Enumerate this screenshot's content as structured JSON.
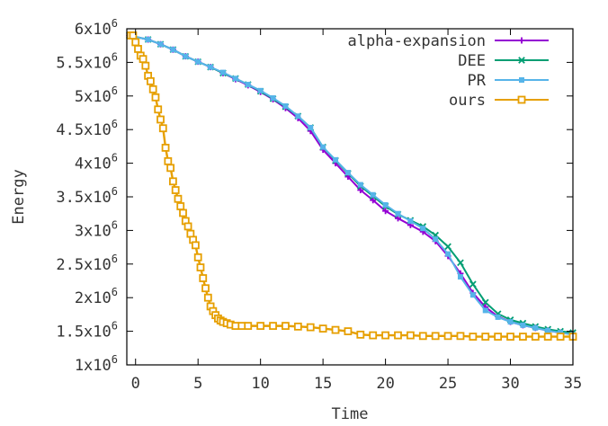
{
  "chart_data": {
    "type": "line",
    "title": "",
    "xlabel": "Time",
    "ylabel": "Energy",
    "xlim": [
      -0.7,
      35
    ],
    "ylim": [
      1000000,
      6000000
    ],
    "x_ticks": [
      0,
      5,
      10,
      15,
      20,
      25,
      30,
      35
    ],
    "x_tick_labels": [
      "0",
      "5",
      "10",
      "15",
      "20",
      "25",
      "30",
      "35"
    ],
    "y_ticks": [
      1000000,
      1500000,
      2000000,
      2500000,
      3000000,
      3500000,
      4000000,
      4500000,
      5000000,
      5500000,
      6000000
    ],
    "y_tick_labels": [
      {
        "base": "1x10",
        "exp": "6"
      },
      {
        "base": "1.5x10",
        "exp": "6"
      },
      {
        "base": "2x10",
        "exp": "6"
      },
      {
        "base": "2.5x10",
        "exp": "6"
      },
      {
        "base": "3x10",
        "exp": "6"
      },
      {
        "base": "3.5x10",
        "exp": "6"
      },
      {
        "base": "4x10",
        "exp": "6"
      },
      {
        "base": "4.5x10",
        "exp": "6"
      },
      {
        "base": "5x10",
        "exp": "6"
      },
      {
        "base": "5.5x10",
        "exp": "6"
      },
      {
        "base": "6x10",
        "exp": "6"
      }
    ],
    "grid": false,
    "legend_position": "top-right",
    "series": [
      {
        "name": "alpha-expansion",
        "color": "#9400d3",
        "marker": "plus",
        "x": [
          -0.5,
          1,
          2,
          3,
          4,
          5,
          6,
          7,
          8,
          9,
          10,
          11,
          12,
          13,
          14,
          15,
          16,
          17,
          18,
          19,
          20,
          21,
          22,
          23,
          24,
          25,
          26,
          27,
          28,
          29,
          30,
          31,
          32,
          33,
          34,
          35
        ],
        "y": [
          5900000,
          5840000,
          5770000,
          5690000,
          5590000,
          5510000,
          5430000,
          5340000,
          5250000,
          5160000,
          5060000,
          4950000,
          4820000,
          4670000,
          4480000,
          4200000,
          4000000,
          3800000,
          3600000,
          3450000,
          3290000,
          3180000,
          3080000,
          2980000,
          2840000,
          2620000,
          2360000,
          2070000,
          1860000,
          1720000,
          1640000,
          1590000,
          1550000,
          1510000,
          1480000,
          1460000
        ]
      },
      {
        "name": "DEE",
        "color": "#009e73",
        "marker": "cross",
        "x": [
          -0.5,
          1,
          2,
          3,
          4,
          5,
          6,
          7,
          8,
          9,
          10,
          11,
          12,
          13,
          14,
          15,
          16,
          17,
          18,
          19,
          20,
          21,
          22,
          23,
          24,
          25,
          26,
          27,
          28,
          29,
          30,
          31,
          32,
          33,
          34,
          35
        ],
        "y": [
          5900000,
          5840000,
          5770000,
          5690000,
          5590000,
          5510000,
          5430000,
          5340000,
          5260000,
          5170000,
          5070000,
          4960000,
          4840000,
          4700000,
          4530000,
          4240000,
          4040000,
          3850000,
          3660000,
          3510000,
          3360000,
          3240000,
          3150000,
          3060000,
          2930000,
          2760000,
          2520000,
          2200000,
          1930000,
          1760000,
          1670000,
          1620000,
          1570000,
          1530000,
          1500000,
          1480000
        ]
      },
      {
        "name": "PR",
        "color": "#56b4e9",
        "marker": "square-filled",
        "x": [
          -0.5,
          1,
          2,
          3,
          4,
          5,
          6,
          7,
          8,
          9,
          10,
          11,
          12,
          13,
          14,
          15,
          16,
          17,
          18,
          19,
          20,
          21,
          22,
          23,
          24,
          25,
          26,
          27,
          28,
          29,
          30,
          31,
          32,
          33,
          34,
          35
        ],
        "y": [
          5900000,
          5840000,
          5770000,
          5690000,
          5590000,
          5510000,
          5430000,
          5350000,
          5260000,
          5170000,
          5080000,
          4970000,
          4850000,
          4700000,
          4530000,
          4240000,
          4050000,
          3860000,
          3680000,
          3530000,
          3380000,
          3250000,
          3140000,
          3030000,
          2870000,
          2650000,
          2310000,
          2040000,
          1810000,
          1710000,
          1640000,
          1590000,
          1550000,
          1510000,
          1480000,
          1450000
        ]
      },
      {
        "name": "ours",
        "color": "#e69f00",
        "marker": "square-open",
        "x": [
          -0.4,
          -0.2,
          0,
          0.2,
          0.4,
          0.6,
          0.8,
          1.0,
          1.2,
          1.4,
          1.6,
          1.8,
          2.0,
          2.2,
          2.4,
          2.6,
          2.8,
          3.0,
          3.2,
          3.4,
          3.6,
          3.8,
          4.0,
          4.2,
          4.4,
          4.6,
          4.8,
          5.0,
          5.2,
          5.4,
          5.6,
          5.8,
          6.0,
          6.2,
          6.4,
          6.6,
          6.8,
          7.0,
          7.3,
          7.6,
          8.0,
          8.5,
          9,
          10,
          11,
          12,
          13,
          14,
          15,
          16,
          17,
          18,
          19,
          20,
          21,
          22,
          23,
          24,
          25,
          26,
          27,
          28,
          29,
          30,
          31,
          32,
          33,
          34,
          35
        ],
        "y": [
          5900000,
          5900000,
          5800000,
          5700000,
          5600000,
          5550000,
          5450000,
          5300000,
          5220000,
          5100000,
          4980000,
          4800000,
          4650000,
          4520000,
          4230000,
          4030000,
          3930000,
          3730000,
          3600000,
          3470000,
          3360000,
          3260000,
          3140000,
          3060000,
          2950000,
          2860000,
          2780000,
          2600000,
          2450000,
          2290000,
          2140000,
          2000000,
          1870000,
          1800000,
          1740000,
          1690000,
          1660000,
          1640000,
          1620000,
          1600000,
          1580000,
          1580000,
          1580000,
          1580000,
          1580000,
          1580000,
          1570000,
          1560000,
          1540000,
          1520000,
          1500000,
          1450000,
          1440000,
          1440000,
          1440000,
          1440000,
          1430000,
          1430000,
          1430000,
          1430000,
          1420000,
          1420000,
          1420000,
          1420000,
          1420000,
          1420000,
          1420000,
          1420000,
          1420000
        ]
      }
    ]
  }
}
